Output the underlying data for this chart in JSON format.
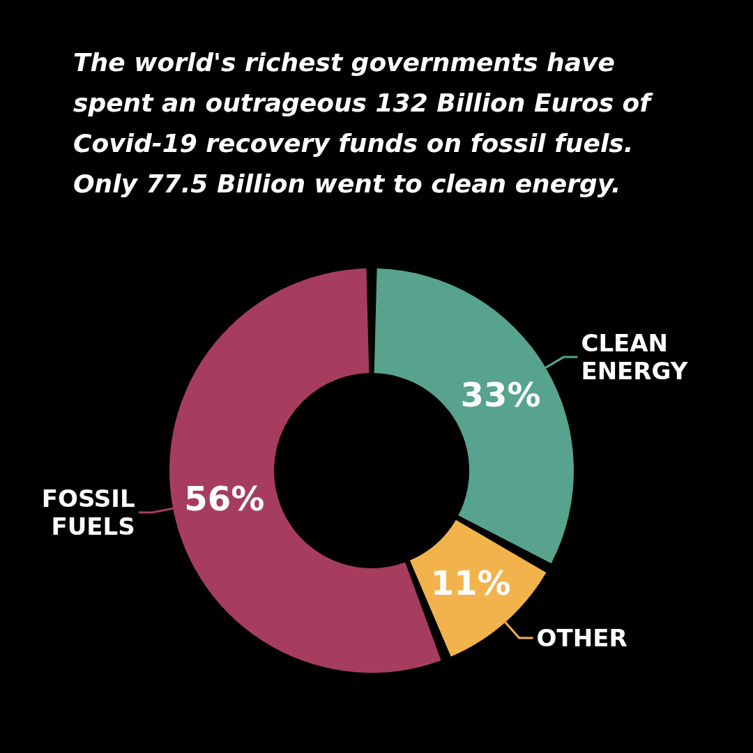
{
  "chart_data": {
    "type": "donut",
    "title": "The world's richest governments have spent an outrageous 132 Billion Euros of Covid-19 recovery funds on fossil fuels. Only 77.5 Billion went to clean energy.",
    "categories": [
      "CLEAN ENERGY",
      "OTHER",
      "FOSSIL FUELS"
    ],
    "values": [
      33,
      11,
      56
    ],
    "colors": [
      "#57a38e",
      "#f2b34c",
      "#a63d5f"
    ],
    "value_labels": [
      "33%",
      "11%",
      "56%"
    ],
    "legend": false
  }
}
